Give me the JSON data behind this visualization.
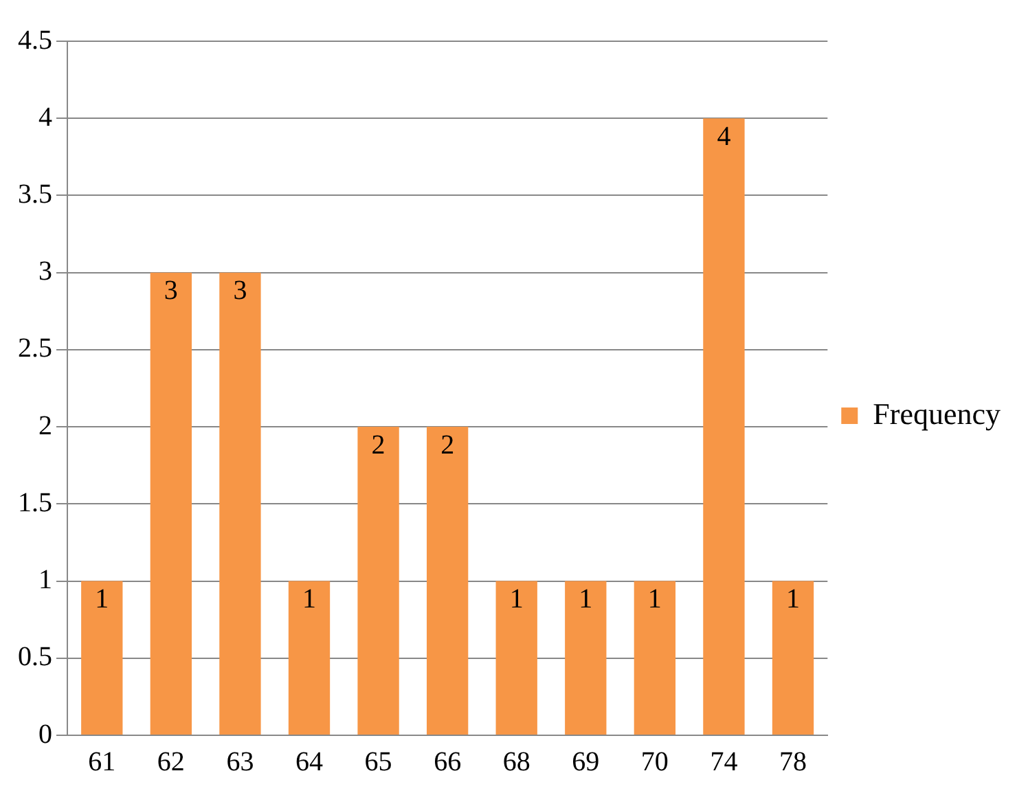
{
  "chart_data": {
    "type": "bar",
    "categories": [
      "61",
      "62",
      "63",
      "64",
      "65",
      "66",
      "68",
      "69",
      "70",
      "74",
      "78"
    ],
    "series": [
      {
        "name": "Frequency",
        "color": "#f79646",
        "values": [
          1,
          3,
          3,
          1,
          2,
          2,
          1,
          1,
          1,
          4,
          1
        ]
      }
    ],
    "ylim": [
      0,
      4.5
    ],
    "yticks": [
      0,
      0.5,
      1,
      1.5,
      2,
      2.5,
      3,
      3.5,
      4,
      4.5
    ],
    "grid": "y",
    "legend": "right",
    "data_labels": true
  }
}
